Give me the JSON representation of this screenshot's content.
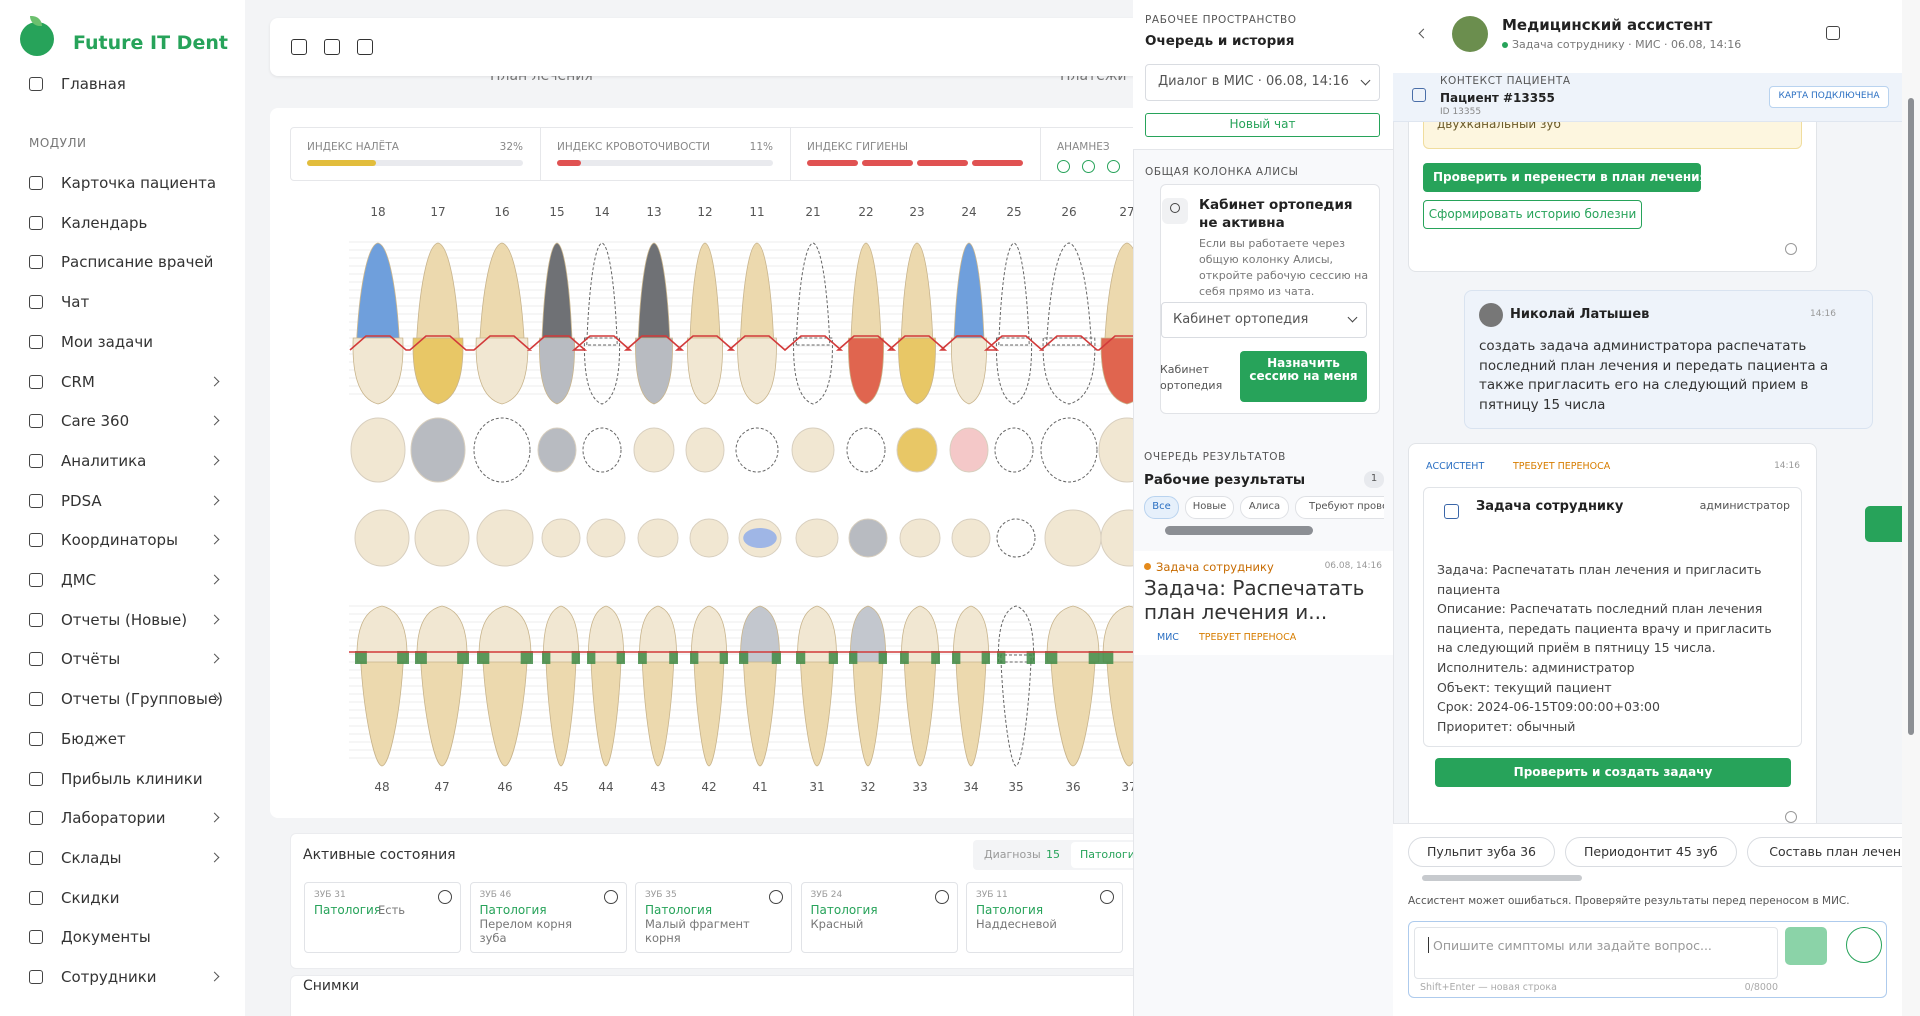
{
  "sidebar": {
    "brand": "Future IT Dent",
    "home": "Главная",
    "section": "МОДУЛИ",
    "items": [
      {
        "label": "Карточка пациента",
        "submenu": false
      },
      {
        "label": "Календарь",
        "submenu": false
      },
      {
        "label": "Расписание врачей",
        "submenu": false
      },
      {
        "label": "Чат",
        "submenu": false
      },
      {
        "label": "Мои задачи",
        "submenu": false
      },
      {
        "label": "CRM",
        "submenu": true
      },
      {
        "label": "Care 360",
        "submenu": true
      },
      {
        "label": "Аналитика",
        "submenu": true
      },
      {
        "label": "PDSA",
        "submenu": true
      },
      {
        "label": "Координаторы",
        "submenu": true
      },
      {
        "label": "ДМС",
        "submenu": true
      },
      {
        "label": "Отчеты (Новые)",
        "submenu": true
      },
      {
        "label": "Отчёты",
        "submenu": true
      },
      {
        "label": "Отчеты (Групповые)",
        "submenu": true
      },
      {
        "label": "Бюджет",
        "submenu": false
      },
      {
        "label": "Прибыль клиники",
        "submenu": false
      },
      {
        "label": "Лаборатории",
        "submenu": true
      },
      {
        "label": "Склады",
        "submenu": true
      },
      {
        "label": "Скидки",
        "submenu": false
      },
      {
        "label": "Документы",
        "submenu": false
      },
      {
        "label": "Сотрудники",
        "submenu": true
      }
    ]
  },
  "main": {
    "hidden_tabs": [
      "План лечения",
      "Платежи"
    ],
    "indices": [
      {
        "label": "ИНДЕКС НАЛЁТА",
        "value": 32,
        "value_label": "32%",
        "color": "#e2bd3c"
      },
      {
        "label": "ИНДЕКС КРОВОТОЧИВОСТИ",
        "value": 11,
        "value_label": "11%",
        "color": "#e05252"
      },
      {
        "label": "ИНДЕКС ГИГИЕНЫ",
        "color": "#e05252"
      },
      {
        "label": "АНАМНЕЗ"
      }
    ],
    "upper_teeth": [
      18,
      17,
      16,
      15,
      14,
      13,
      12,
      11,
      21,
      22,
      23,
      24,
      25,
      26,
      27
    ],
    "lower_teeth": [
      48,
      47,
      46,
      45,
      44,
      43,
      42,
      41,
      31,
      32,
      33,
      34,
      35,
      36,
      37
    ],
    "active": {
      "title": "Активные состояния",
      "tabs": [
        {
          "label": "Диагнозы",
          "count": "15"
        },
        {
          "label": "Патологии"
        }
      ],
      "cards": [
        {
          "tooth": "ЗУБ 31",
          "type": "Патология",
          "text": "Есть"
        },
        {
          "tooth": "ЗУБ 46",
          "type": "Патология",
          "text": "Перелом корня зуба"
        },
        {
          "tooth": "ЗУБ 35",
          "type": "Патология",
          "text": "Малый фрагмент корня"
        },
        {
          "tooth": "ЗУБ 24",
          "type": "Патология",
          "text": "Красный"
        },
        {
          "tooth": "ЗУБ 11",
          "type": "Патология",
          "text": "Наддесневой"
        }
      ]
    },
    "images_title": "Снимки"
  },
  "workspace": {
    "label": "РАБОЧЕЕ ПРОСТРАНСТВО",
    "title": "Очередь и история",
    "select": "Диалог в МИС · 06.08, 14:16",
    "new_chat": "Новый чат",
    "alice_label": "ОБЩАЯ КОЛОНКА АЛИСЫ",
    "alice_title": "Кабинет ортопедия не активна",
    "alice_text": "Если вы работаете через общую колонку Алисы, откройте рабочую сессию на себя прямо из чата.",
    "alice_select": "Кабинет ортопедия",
    "cabinet": "Кабинет ортопедия",
    "assign": "Назначить сессию на меня",
    "queue_label": "ОЧЕРЕДЬ РЕЗУЛЬТАТОВ",
    "queue_title": "Рабочие результаты",
    "queue_count": "1",
    "filters": [
      "Все",
      "Новые",
      "Алиса",
      "Требуют проверки"
    ],
    "result": {
      "kind": "Задача сотруднику",
      "time": "06.08, 14:16",
      "title": "Задача: Распечатать план лечения и...",
      "tags": [
        "МИС",
        "ТРЕБУЕТ ПЕРЕНОСА"
      ]
    }
  },
  "assistant": {
    "title": "Медицинский ассистент",
    "status": "Задача сотруднику · МИС · 06.08, 14:16",
    "context_label": "КОНТЕКСТ ПАЦИЕНТА",
    "patient": "Пациент #13355",
    "patient_id": "ID 13355",
    "card_badge": "КАРТА ПОДКЛЮЧЕНА",
    "prev_note": "двухканальный зуб",
    "btn_move": "Проверить и перенести в план лечения",
    "btn_history": "Сформировать историю болезни",
    "user_message": {
      "name": "Николай Латышев",
      "time": "14:16",
      "text": "создать задача администратора распечатать последний план лечения и передать пациента а также пригласить его на следующий прием в пятницу 15 числа"
    },
    "reply": {
      "badge": "АССИСТЕНТ",
      "status": "ТРЕБУЕТ ПЕРЕНОСА",
      "time": "14:16",
      "card_title": "Задача сотруднику",
      "role": "администратор",
      "lines": [
        "Задача: Распечатать план лечения и пригласить пациента",
        "Описание: Распечатать последний план лечения пациента, передать пациента врачу и пригласить на следующий приём в пятницу 15 числа.",
        "Исполнитель: администратор",
        "Объект: текущий пациент",
        "Срок: 2024-06-15T09:00:00+03:00",
        "Приоритет: обычный"
      ],
      "button": "Проверить и создать задачу"
    },
    "suggestions": [
      "Пульпит зуба 36",
      "Периодонтит 45 зуб",
      "Составь план лечения по"
    ],
    "disclaimer": "Ассистент может ошибаться. Проверяйте результаты перед переносом в МИС.",
    "placeholder": "Опишите симптомы или задайте вопрос...",
    "hint": "Shift+Enter — новая строка",
    "counter": "0/8000"
  }
}
